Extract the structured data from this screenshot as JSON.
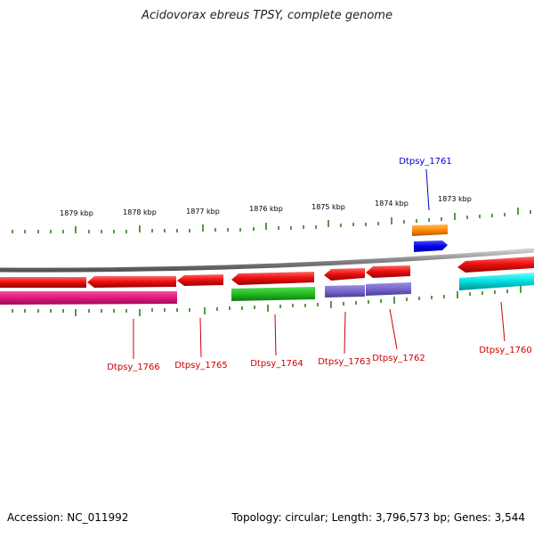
{
  "title": "Acidovorax ebreus TPSY, complete genome",
  "footer": {
    "accession": "Accession: NC_011992",
    "topology": "Topology: circular; Length: 3,796,573 bp; Genes: 3,544"
  },
  "colors": {
    "red": "#ee1111",
    "magenta": "#e0187a",
    "green": "#22bb22",
    "purple": "#7766cc",
    "orange": "#ff8800",
    "blue": "#0000ee",
    "cyan": "#00dddd",
    "tick": "#2e7d1e",
    "backbone": "#888888",
    "label_red": "#cc0000",
    "label_blue": "#0000cc"
  },
  "scale_ticks": [
    "1879 kbp",
    "1878 kbp",
    "1877 kbp",
    "1876 kbp",
    "1875 kbp",
    "1874 kbp",
    "1873 kbp"
  ],
  "gene_labels": [
    {
      "name": "Dtpsy_1766",
      "color": "label_red"
    },
    {
      "name": "Dtpsy_1765",
      "color": "label_red"
    },
    {
      "name": "Dtpsy_1764",
      "color": "label_red"
    },
    {
      "name": "Dtpsy_1763",
      "color": "label_red"
    },
    {
      "name": "Dtpsy_1762",
      "color": "label_red"
    },
    {
      "name": "Dtpsy_1760",
      "color": "label_red"
    },
    {
      "name": "Dtpsy_1761",
      "color": "label_blue"
    }
  ]
}
